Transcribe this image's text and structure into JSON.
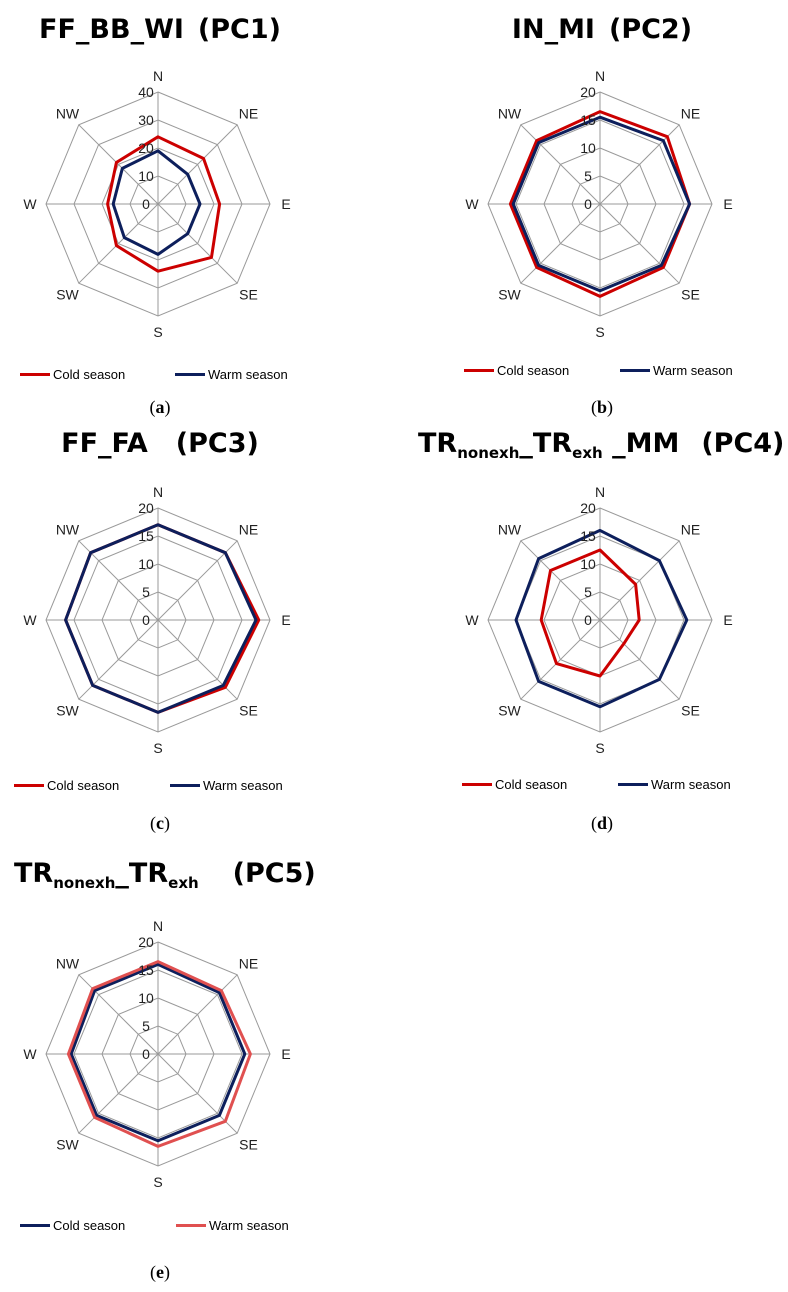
{
  "chart_data": [
    {
      "type": "radar",
      "title": {
        "main": "FF_BB_WI",
        "pc": "(PC1)"
      },
      "caption_letter": "a",
      "directions": [
        "N",
        "NE",
        "E",
        "SE",
        "S",
        "SW",
        "W",
        "NW"
      ],
      "rmax": 40,
      "ticks": [
        0,
        10,
        20,
        30,
        40
      ],
      "series": [
        {
          "name": "Cold season",
          "color": "#cc0000",
          "values": [
            24,
            23,
            22,
            27,
            24,
            21,
            18,
            21
          ]
        },
        {
          "name": "Warm season",
          "color": "#0d1f5c",
          "values": [
            19,
            15,
            15,
            15,
            18,
            17,
            16,
            18
          ]
        }
      ]
    },
    {
      "type": "radar",
      "title": {
        "main": "IN_MI",
        "pc": "(PC2)"
      },
      "caption_letter": "b",
      "directions": [
        "N",
        "NE",
        "E",
        "SE",
        "S",
        "SW",
        "W",
        "NW"
      ],
      "rmax": 20,
      "ticks": [
        0,
        5,
        10,
        15,
        20
      ],
      "series": [
        {
          "name": "Cold season",
          "color": "#cc0000",
          "values": [
            16.5,
            17,
            16,
            16,
            16.5,
            16,
            16,
            16
          ]
        },
        {
          "name": "Warm season",
          "color": "#0d1f5c",
          "values": [
            15.5,
            16,
            16,
            15.5,
            15.5,
            15.5,
            15.5,
            15.5
          ]
        }
      ]
    },
    {
      "type": "radar",
      "title": {
        "main": "FF_FA",
        "pc": "(PC3)"
      },
      "caption_letter": "c",
      "directions": [
        "N",
        "NE",
        "E",
        "SE",
        "S",
        "SW",
        "W",
        "NW"
      ],
      "rmax": 20,
      "ticks": [
        0,
        5,
        10,
        15,
        20
      ],
      "series": [
        {
          "name": "Cold season",
          "color": "#cc0000",
          "values": [
            17,
            17,
            18,
            17,
            16.5,
            16.5,
            16.5,
            17
          ]
        },
        {
          "name": "Warm season",
          "color": "#0d1f5c",
          "values": [
            17,
            17,
            17.5,
            16.5,
            16.5,
            16.5,
            16.5,
            17
          ]
        }
      ]
    },
    {
      "type": "radar",
      "title": {
        "main": "TR",
        "sub1": "nonexh",
        "sep": "_TR",
        "sub2": "exh",
        "tail": " _MM",
        "pc": "(PC4)"
      },
      "caption_letter": "d",
      "directions": [
        "N",
        "NE",
        "E",
        "SE",
        "S",
        "SW",
        "W",
        "NW"
      ],
      "rmax": 20,
      "ticks": [
        0,
        5,
        10,
        15,
        20
      ],
      "series": [
        {
          "name": "Cold season",
          "color": "#cc0000",
          "values": [
            12.5,
            9,
            7,
            6,
            10,
            11,
            10.5,
            12.5
          ]
        },
        {
          "name": "Warm season",
          "color": "#0d1f5c",
          "values": [
            16,
            15,
            15.5,
            15,
            15.5,
            15.5,
            15,
            15.5
          ]
        }
      ]
    },
    {
      "type": "radar",
      "title": {
        "main": "TR",
        "sub1": "nonexh",
        "sep": "_TR",
        "sub2": "exh",
        "tail": "",
        "pc": "(PC5)"
      },
      "caption_letter": "e",
      "directions": [
        "N",
        "NE",
        "E",
        "SE",
        "S",
        "SW",
        "W",
        "NW"
      ],
      "rmax": 20,
      "ticks": [
        0,
        5,
        10,
        15,
        20
      ],
      "series": [
        {
          "name": "Cold season",
          "color": "#0d1f5c",
          "values": [
            16,
            15.5,
            15.5,
            15.5,
            15.5,
            15.5,
            15.5,
            16
          ]
        },
        {
          "name": "Warm season",
          "color": "#e05050",
          "values": [
            16.5,
            16,
            16.5,
            17,
            16.5,
            16,
            16,
            16.5
          ]
        }
      ]
    }
  ]
}
